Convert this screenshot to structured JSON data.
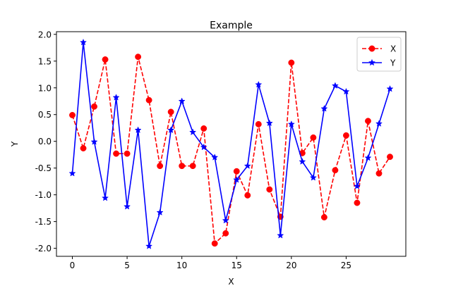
{
  "chart_data": {
    "type": "line",
    "title": "Example",
    "xlabel": "X",
    "ylabel": "Y",
    "xlim": [
      -1.45,
      30.45
    ],
    "ylim": [
      -2.15,
      2.05
    ],
    "x_ticks": [
      0,
      5,
      10,
      15,
      20,
      25
    ],
    "y_ticks": [
      -2.0,
      -1.5,
      -1.0,
      -0.5,
      0.0,
      0.5,
      1.0,
      1.5,
      2.0
    ],
    "grid": false,
    "legend_position": "top-right",
    "series": [
      {
        "name": "X",
        "color": "#ff0000",
        "line_style": "dashed",
        "marker": "circle",
        "x": [
          0,
          1,
          2,
          3,
          4,
          5,
          6,
          7,
          8,
          9,
          10,
          11,
          12,
          13,
          14,
          15,
          16,
          17,
          18,
          19,
          20,
          21,
          22,
          23,
          24,
          25,
          26,
          27,
          28,
          29
        ],
        "values": [
          0.49,
          -0.13,
          0.65,
          1.53,
          -0.23,
          -0.23,
          1.58,
          0.77,
          -0.46,
          0.55,
          -0.46,
          -0.46,
          0.24,
          -1.91,
          -1.72,
          -0.56,
          -1.01,
          0.32,
          -0.9,
          -1.41,
          1.47,
          -0.22,
          0.07,
          -1.42,
          -0.54,
          0.11,
          -1.15,
          0.38,
          -0.6,
          -0.29
        ]
      },
      {
        "name": "Y",
        "color": "#0000ff",
        "line_style": "solid",
        "marker": "star",
        "x": [
          0,
          1,
          2,
          3,
          4,
          5,
          6,
          7,
          8,
          9,
          10,
          11,
          12,
          13,
          14,
          15,
          16,
          17,
          18,
          19,
          20,
          21,
          22,
          23,
          24,
          25,
          26,
          27,
          28,
          29
        ],
        "values": [
          -0.6,
          1.85,
          -0.01,
          -1.06,
          0.82,
          -1.22,
          0.21,
          -1.96,
          -1.33,
          0.21,
          0.75,
          0.17,
          -0.11,
          -0.3,
          -1.48,
          -0.72,
          -0.46,
          1.06,
          0.34,
          -1.76,
          0.32,
          -0.38,
          -0.68,
          0.61,
          1.04,
          0.93,
          -0.84,
          -0.31,
          0.33,
          0.98
        ]
      }
    ]
  }
}
